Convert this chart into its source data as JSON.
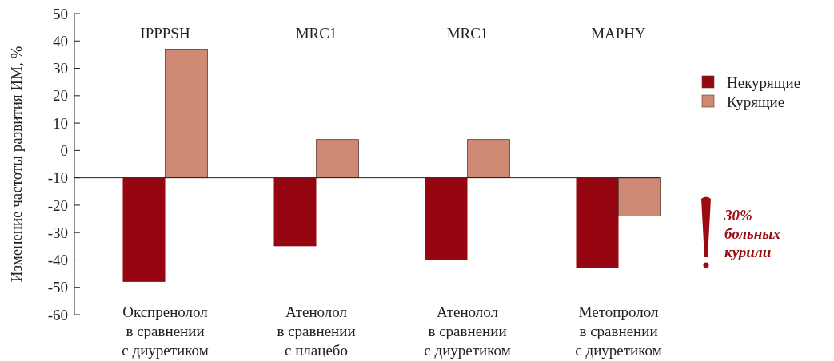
{
  "chart_data": {
    "type": "bar",
    "ylabel": "Изменение частоты развития ИМ, %",
    "categories": [
      "Окспренолол\nв сравнении\nс диуретиком",
      "Атенолол\nв сравнении\nс плацебо",
      "Атенолол\nв сравнении\nс диуретиком",
      "Метопролол\nв сравнении\nс диуретиком"
    ],
    "series": [
      {
        "name": "Некурящие",
        "color": "#960610",
        "values": [
          -38,
          -25,
          -30,
          -33
        ],
        "base": [
          -10,
          -10,
          -10,
          -10
        ]
      },
      {
        "name": "Курящие",
        "color": "#cf8a76",
        "values": [
          47,
          14,
          14,
          -14
        ],
        "base": [
          -10,
          -10,
          -10,
          -10
        ]
      }
    ],
    "ylim": [
      -60,
      50
    ],
    "yticks": [
      -60,
      -50,
      -40,
      -30,
      -20,
      -10,
      0,
      10,
      20,
      30,
      40,
      50
    ],
    "annotations": [
      "IPPPSH",
      "MRC1",
      "MRC1",
      "MAPHY",
      "30%\nбольных\nкурили"
    ],
    "ref_lines": [
      {
        "axis": "y",
        "value": -10
      }
    ],
    "legend": "right"
  }
}
